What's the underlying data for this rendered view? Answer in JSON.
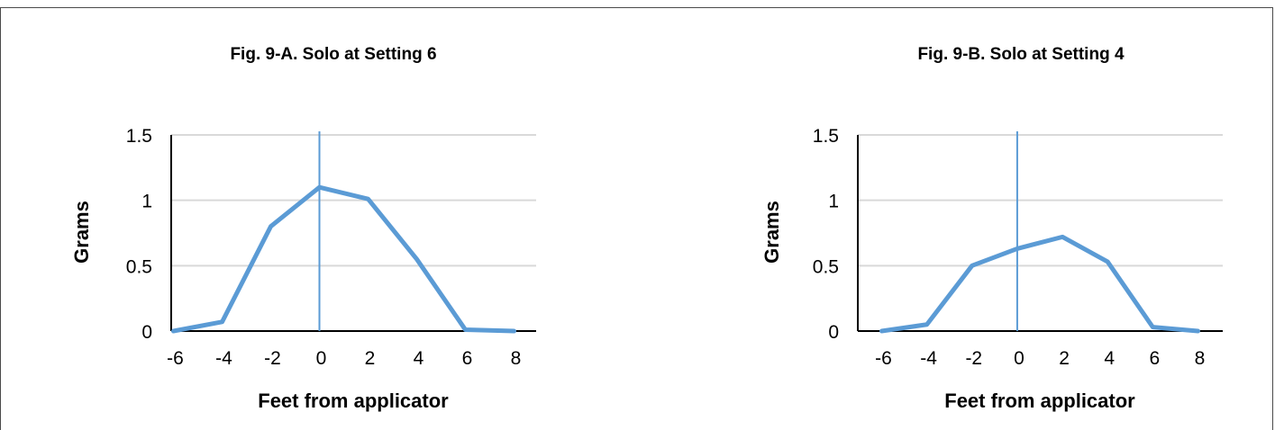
{
  "chart_data": [
    {
      "type": "line",
      "title": "Fig. 9-A. Solo at Setting 6",
      "xlabel": "Feet from applicator",
      "ylabel": "Grams",
      "x_ticks": [
        "-6",
        "-4",
        "-2",
        "0",
        "2",
        "4",
        "6",
        "8"
      ],
      "y_ticks": [
        "0",
        "0.5",
        "1",
        "1.5"
      ],
      "xlim": [
        -7,
        9
      ],
      "ylim": [
        0,
        1.5
      ],
      "grid": "horizontal",
      "reference_line_x": 0,
      "series_color": "#5b9bd5",
      "x": [
        -6,
        -4,
        -2,
        0,
        2,
        4,
        6,
        8
      ],
      "values": [
        0,
        0.07,
        0.8,
        1.1,
        1.01,
        0.55,
        0.01,
        0
      ]
    },
    {
      "type": "line",
      "title": "Fig. 9-B. Solo at Setting 4",
      "xlabel": "Feet from applicator",
      "ylabel": "Grams",
      "x_ticks": [
        "-6",
        "-4",
        "-2",
        "0",
        "2",
        "4",
        "6",
        "8"
      ],
      "y_ticks": [
        "0",
        "0.5",
        "1",
        "1.5"
      ],
      "xlim": [
        -7,
        9
      ],
      "ylim": [
        0,
        1.5
      ],
      "grid": "horizontal",
      "reference_line_x": 0,
      "series_color": "#5b9bd5",
      "x": [
        -6,
        -4,
        -2,
        0,
        2,
        4,
        6,
        8
      ],
      "values": [
        0,
        0.05,
        0.5,
        0.63,
        0.72,
        0.53,
        0.03,
        0
      ]
    }
  ]
}
